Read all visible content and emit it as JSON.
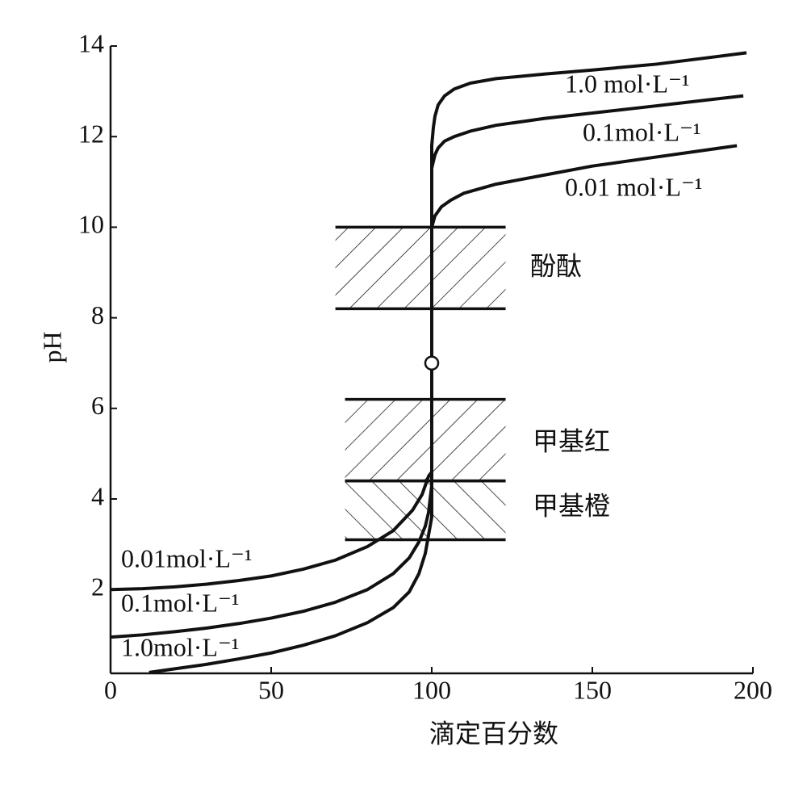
{
  "chart_data": {
    "type": "line",
    "xlabel": "滴定百分数",
    "ylabel": "pH",
    "xlim": [
      0,
      200
    ],
    "ylim": [
      0.15,
      14
    ],
    "xticks": [
      0,
      50,
      100,
      150,
      200
    ],
    "yticks": [
      2,
      4,
      6,
      8,
      10,
      12,
      14
    ],
    "color": "#111111",
    "series": [
      {
        "name": "1.0 mol·L⁻¹",
        "left_label": "1.0mol·L⁻¹",
        "x": [
          12,
          20,
          30,
          40,
          50,
          60,
          70,
          80,
          88,
          93,
          96,
          98,
          99,
          100,
          100,
          100.5,
          101,
          102,
          104,
          107,
          112,
          120,
          135,
          150,
          170,
          198
        ],
        "values": [
          0.17,
          0.25,
          0.35,
          0.47,
          0.6,
          0.77,
          0.98,
          1.27,
          1.6,
          1.95,
          2.35,
          2.8,
          3.2,
          3.6,
          11.8,
          12.2,
          12.45,
          12.7,
          12.9,
          13.05,
          13.18,
          13.28,
          13.38,
          13.47,
          13.6,
          13.85
        ]
      },
      {
        "name": "0.1mol·L⁻¹",
        "left_label": "0.1mol·L⁻¹",
        "x": [
          0,
          10,
          20,
          30,
          40,
          50,
          60,
          70,
          80,
          88,
          93,
          96,
          98,
          99,
          100,
          100,
          101,
          102,
          104,
          107,
          112,
          120,
          135,
          150,
          170,
          197
        ],
        "values": [
          0.95,
          1.0,
          1.07,
          1.15,
          1.25,
          1.37,
          1.52,
          1.72,
          2.0,
          2.35,
          2.7,
          3.05,
          3.4,
          3.7,
          4.3,
          11.3,
          11.6,
          11.75,
          11.9,
          12.0,
          12.12,
          12.25,
          12.4,
          12.52,
          12.68,
          12.9
        ]
      },
      {
        "name": "0.01 mol·L⁻¹",
        "left_label": "0.01mol·L⁻¹",
        "x": [
          0,
          10,
          20,
          30,
          40,
          50,
          60,
          70,
          80,
          88,
          94,
          97,
          99,
          100,
          100,
          101,
          103,
          106,
          110,
          120,
          135,
          150,
          170,
          195
        ],
        "values": [
          2.0,
          2.02,
          2.06,
          2.12,
          2.2,
          2.3,
          2.45,
          2.65,
          2.95,
          3.3,
          3.75,
          4.1,
          4.5,
          4.6,
          10.0,
          10.25,
          10.45,
          10.6,
          10.75,
          10.95,
          11.15,
          11.35,
          11.55,
          11.8
        ]
      }
    ],
    "equivalence_point": {
      "x": 100,
      "y": 7
    },
    "bands": [
      {
        "label": "酚酞",
        "range": [
          8.2,
          10.0
        ],
        "x": [
          70,
          123
        ],
        "hatch": "/"
      },
      {
        "label": "甲基红",
        "range": [
          4.4,
          6.2
        ],
        "x": [
          73,
          123
        ],
        "hatch": "/"
      },
      {
        "label": "甲基橙",
        "range": [
          3.1,
          4.4
        ],
        "x": [
          73,
          123
        ],
        "hatch": "\\"
      }
    ]
  }
}
